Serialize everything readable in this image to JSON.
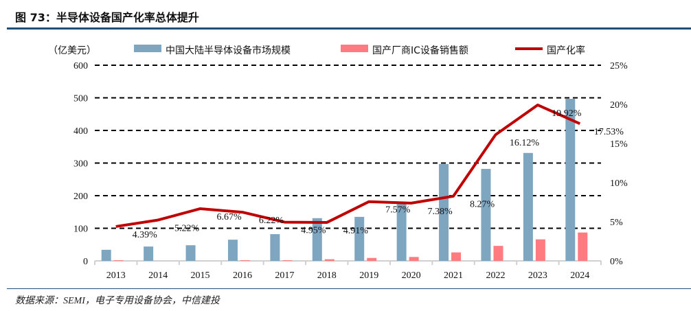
{
  "title": "图 73：半导体设备国产化率总体提升",
  "source": "数据来源：SEMI，电子专用设备协会，中信建投",
  "chart_data": {
    "type": "bar+line",
    "categories": [
      "2013",
      "2014",
      "2015",
      "2016",
      "2017",
      "2018",
      "2019",
      "2020",
      "2021",
      "2022",
      "2023",
      "2024"
    ],
    "ylabel_left": "（亿美元）",
    "ylim_left": [
      0,
      600
    ],
    "yticks_left": [
      "0",
      "100",
      "200",
      "300",
      "400",
      "500",
      "600"
    ],
    "ylim_right": [
      0,
      25
    ],
    "yticks_right": [
      "0%",
      "5%",
      "10%",
      "15%",
      "20%",
      "25%"
    ],
    "grid": "dashed horizontal",
    "legend_position": "top",
    "series": [
      {
        "name": "中国大陆半导体设备市场规模",
        "type": "bar",
        "axis": "left",
        "color": "#7fa6c0",
        "values": [
          34,
          44,
          48,
          65,
          82,
          131,
          135,
          181,
          297,
          282,
          331,
          497
        ]
      },
      {
        "name": "国产厂商IC设备销售额",
        "type": "bar",
        "axis": "left",
        "color": "#ff7b80",
        "values": [
          2,
          0,
          0,
          2,
          2,
          5,
          9,
          12,
          26,
          46,
          66,
          87
        ]
      },
      {
        "name": "国产化率",
        "type": "line",
        "axis": "right",
        "color": "#c00000",
        "values": [
          4.39,
          5.22,
          6.67,
          6.22,
          4.95,
          4.91,
          7.57,
          7.38,
          8.27,
          16.12,
          19.92,
          17.53
        ],
        "labels": [
          "4.39%",
          "5.22%",
          "6.67%",
          "6.22%",
          "4.95%",
          "4.91%",
          "7.57%",
          "7.38%",
          "8.27%",
          "16.12%",
          "19.92%",
          "17.53%"
        ]
      }
    ]
  }
}
